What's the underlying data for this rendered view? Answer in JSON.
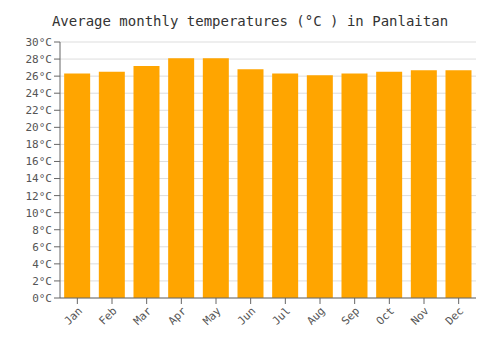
{
  "chart_data": {
    "type": "bar",
    "title": "Average monthly temperatures (°C ) in Panlaitan",
    "categories": [
      "Jan",
      "Feb",
      "Mar",
      "Apr",
      "May",
      "Jun",
      "Jul",
      "Aug",
      "Sep",
      "Oct",
      "Nov",
      "Dec"
    ],
    "values": [
      26.3,
      26.5,
      27.2,
      28.1,
      28.1,
      26.8,
      26.3,
      26.1,
      26.3,
      26.5,
      26.7,
      26.7
    ],
    "color": "#FFA500",
    "ylim": [
      0,
      30
    ],
    "yticks": [
      {
        "value": 0,
        "label": "0°C"
      },
      {
        "value": 2,
        "label": "2°C"
      },
      {
        "value": 4,
        "label": "4°C"
      },
      {
        "value": 6,
        "label": "6°C"
      },
      {
        "value": 8,
        "label": "8°C"
      },
      {
        "value": 10,
        "label": "10°C"
      },
      {
        "value": 12,
        "label": "12°C"
      },
      {
        "value": 14,
        "label": "14°C"
      },
      {
        "value": 16,
        "label": "16°C"
      },
      {
        "value": 18,
        "label": "18°C"
      },
      {
        "value": 20,
        "label": "20°C"
      },
      {
        "value": 22,
        "label": "22°C"
      },
      {
        "value": 24,
        "label": "24°C"
      },
      {
        "value": 26,
        "label": "26°C"
      },
      {
        "value": 28,
        "label": "28°C"
      },
      {
        "value": 30,
        "label": "30°C"
      }
    ],
    "grid": true
  }
}
